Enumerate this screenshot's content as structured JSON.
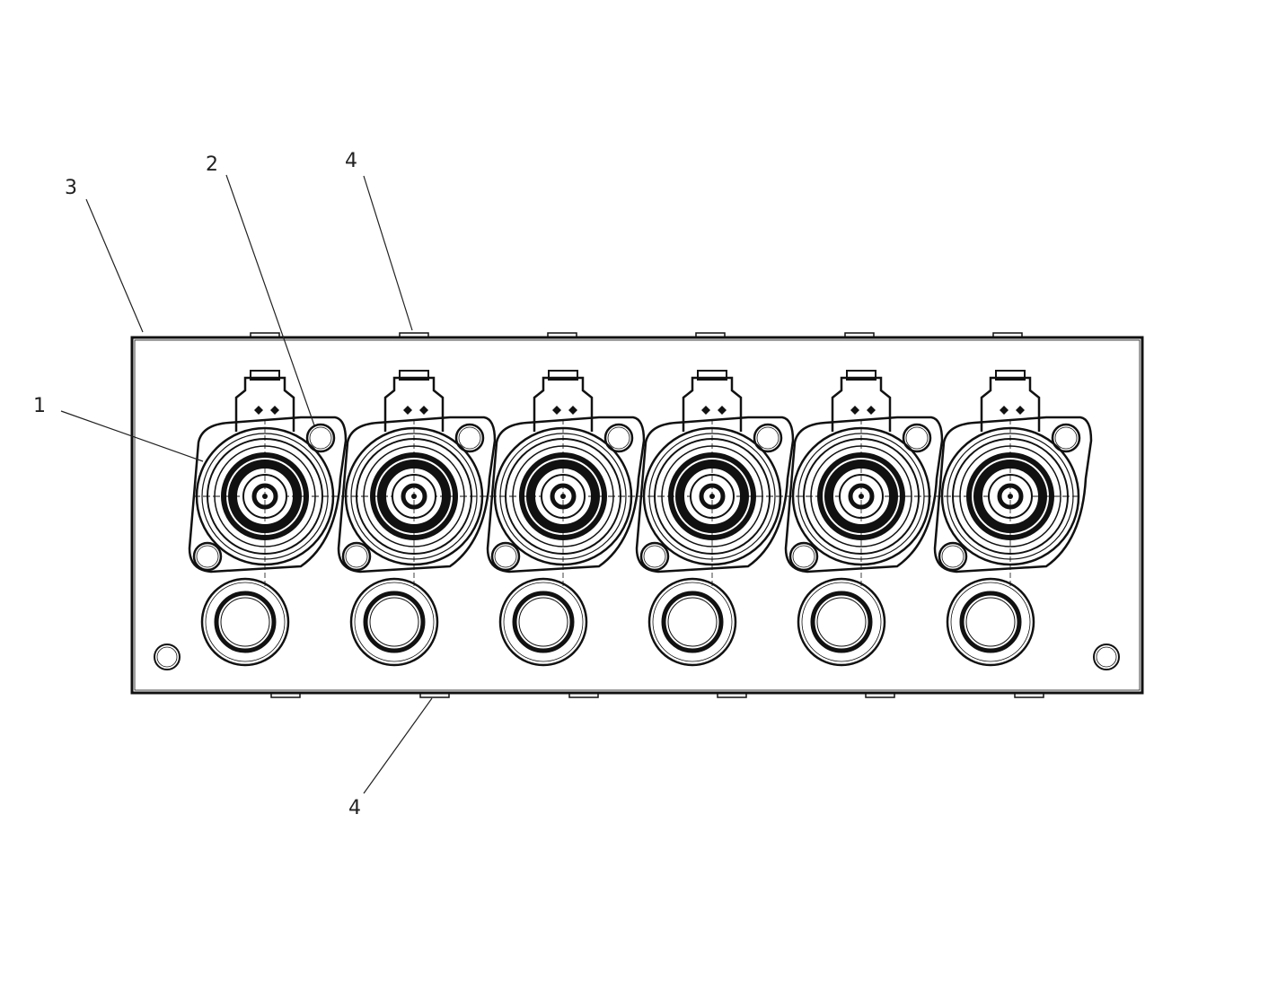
{
  "callouts": [
    {
      "id": "callout-1",
      "label": "1"
    },
    {
      "id": "callout-2",
      "label": "2"
    },
    {
      "id": "callout-3",
      "label": "3"
    },
    {
      "id": "callout-4-top",
      "label": "4"
    },
    {
      "id": "callout-4-bottom",
      "label": "4"
    }
  ],
  "solenoid_count": 6,
  "colors": {
    "line": "#111111",
    "background": "#ffffff"
  }
}
